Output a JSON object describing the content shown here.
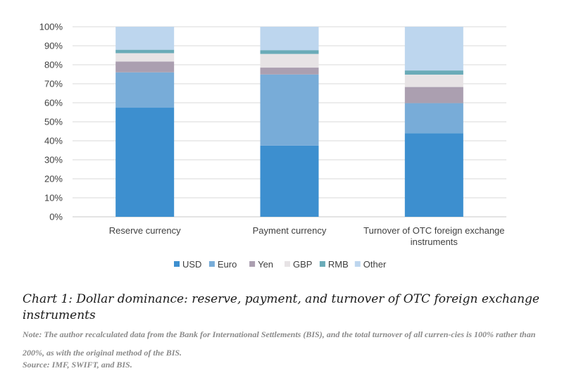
{
  "chart_data": {
    "type": "bar",
    "stacked": true,
    "percent": true,
    "categories": [
      "Reserve currency",
      "Payment currency",
      "Turnover of OTC foreign exchange instruments"
    ],
    "category_lines": [
      [
        "Reserve currency"
      ],
      [
        "Payment currency"
      ],
      [
        "Turnover of OTC foreign exchange",
        "instruments"
      ]
    ],
    "series": [
      {
        "name": "USD",
        "color": "#3d8fcf",
        "values": [
          57.4,
          37.5,
          44.0
        ]
      },
      {
        "name": "Euro",
        "color": "#78acd8",
        "values": [
          18.6,
          37.4,
          15.8
        ]
      },
      {
        "name": "Yen",
        "color": "#ab9fb0",
        "values": [
          5.7,
          3.6,
          8.5
        ]
      },
      {
        "name": "GBP",
        "color": "#e7e3e5",
        "values": [
          4.4,
          7.2,
          6.5
        ]
      },
      {
        "name": "RMB",
        "color": "#6aabb8",
        "values": [
          1.8,
          2.0,
          2.2
        ]
      },
      {
        "name": "Other",
        "color": "#bdd6ee",
        "values": [
          12.1,
          12.3,
          23.0
        ]
      }
    ],
    "yticks": [
      "0%",
      "10%",
      "20%",
      "30%",
      "40%",
      "50%",
      "60%",
      "70%",
      "80%",
      "90%",
      "100%"
    ],
    "ylim": [
      0,
      100
    ],
    "grid": true,
    "legend_position": "bottom"
  },
  "caption": {
    "title": "Chart 1: Dollar dominance: reserve, payment, and turnover of OTC foreign exchange instruments",
    "note": "Note: The author recalculated data from the Bank for International Settlements (BIS), and the total turnover of all curren-cies is 100% rather than 200%, as with the original method of the BIS.",
    "source": "Source: IMF, SWIFT, and BIS."
  }
}
